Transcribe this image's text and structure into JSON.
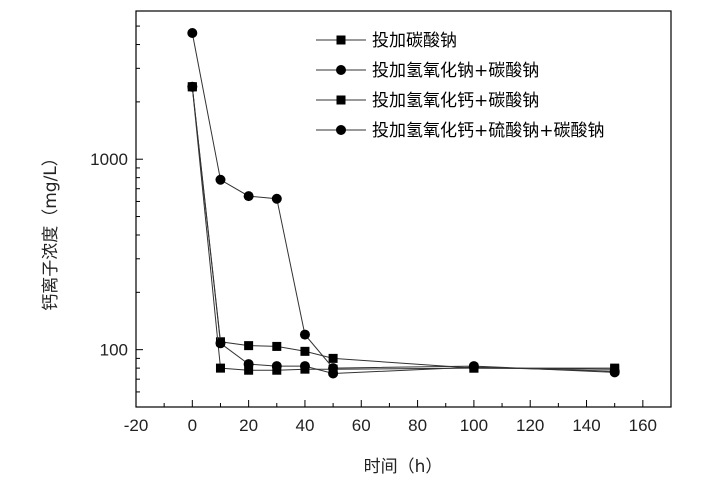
{
  "chart_data": {
    "type": "line",
    "title": "",
    "xlabel": "时间（h）",
    "ylabel": "钙离子浓度（mg/L）",
    "xlim": [
      -20,
      170
    ],
    "ylim": [
      50,
      6000
    ],
    "yscale": "log",
    "xticks": [
      -20,
      0,
      20,
      40,
      60,
      80,
      100,
      120,
      140,
      160
    ],
    "yticks": [
      100,
      1000
    ],
    "grid": false,
    "legend_position": "top-right",
    "series": [
      {
        "name": "投加碳酸钠",
        "marker": "square",
        "x": [
          0,
          10,
          20,
          30,
          40,
          50,
          100,
          150
        ],
        "y": [
          2400,
          110,
          105,
          104,
          98,
          90,
          80,
          80
        ]
      },
      {
        "name": "投加氢氧化钠+碳酸钠",
        "marker": "circle",
        "x": [
          0,
          10,
          20,
          30,
          40,
          50,
          100,
          150
        ],
        "y": [
          4600,
          780,
          640,
          620,
          120,
          80,
          82,
          76
        ]
      },
      {
        "name": "投加氢氧化钙+碳酸钠",
        "marker": "square",
        "x": [
          0,
          10,
          20,
          30,
          40,
          50,
          100,
          150
        ],
        "y": [
          2400,
          80,
          78,
          78,
          79,
          79,
          80,
          79
        ]
      },
      {
        "name": "投加氢氧化钙+硫酸钠+碳酸钠",
        "marker": "circle",
        "x": [
          0,
          10,
          20,
          30,
          40,
          50,
          100,
          150
        ],
        "y": [
          2400,
          108,
          84,
          82,
          82,
          75,
          81,
          77
        ]
      }
    ]
  }
}
